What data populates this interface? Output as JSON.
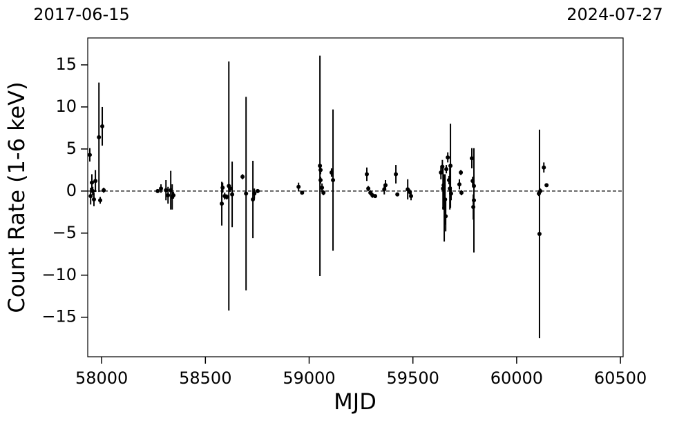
{
  "chart_data": {
    "type": "scatter",
    "top_left_label": "2017-06-15",
    "top_right_label": "2024-07-27",
    "xlabel": "MJD",
    "ylabel": "Count Rate (1-6 keV)",
    "xlim": [
      57933,
      60513
    ],
    "ylim": [
      -19.7,
      18.2
    ],
    "xticks": [
      58000,
      58500,
      59000,
      59500,
      60000,
      60500
    ],
    "yticks": [
      {
        "value": -15,
        "label": "−15"
      },
      {
        "value": -10,
        "label": "−10"
      },
      {
        "value": -5,
        "label": "−5"
      },
      0,
      5,
      10,
      15
    ],
    "hline": 0,
    "color": "#000000",
    "series": [
      {
        "name": "Count Rate",
        "x": [
          57943,
          57947,
          57953,
          57957,
          57963,
          57970,
          57987,
          57993,
          58003,
          58010,
          58270,
          58286,
          58310,
          58320,
          58333,
          58340,
          58346,
          58579,
          58583,
          58593,
          58603,
          58613,
          58619,
          58629,
          58679,
          58696,
          58729,
          58736,
          58752,
          58949,
          58966,
          59052,
          59055,
          59055,
          59062,
          59069,
          59108,
          59115,
          59278,
          59285,
          59295,
          59305,
          59318,
          59362,
          59368,
          59418,
          59425,
          59475,
          59485,
          59491,
          59635,
          59642,
          59645,
          59648,
          59651,
          59655,
          59658,
          59661,
          59668,
          59674,
          59678,
          59681,
          59684,
          59724,
          59731,
          59734,
          59784,
          59788,
          59791,
          59794,
          59794,
          60107,
          60110,
          60114,
          60131,
          60144
        ],
        "values": [
          4.3,
          -0.6,
          1.0,
          0,
          -1.0,
          1.2,
          6.4,
          -1.1,
          7.7,
          0.1,
          0,
          0.3,
          0.1,
          -0.5,
          0.1,
          -0.7,
          -0.5,
          -1.5,
          0.4,
          -0.6,
          -0.7,
          0.6,
          0.3,
          -0.4,
          1.7,
          -0.3,
          -1.0,
          -0.3,
          0,
          0.5,
          -0.2,
          3.0,
          2.5,
          1.3,
          0.4,
          -0.2,
          2.2,
          1.3,
          2.0,
          0.3,
          -0.2,
          -0.5,
          -0.6,
          0.2,
          0.7,
          2.0,
          -0.4,
          0.2,
          -0.1,
          -0.6,
          2.2,
          2.9,
          0.3,
          0.7,
          -2.0,
          -1.0,
          -3.0,
          2.6,
          4.0,
          1.3,
          0.3,
          3.0,
          -0.3,
          0.8,
          2.2,
          -0.2,
          3.9,
          1.2,
          -1.9,
          -1.1,
          0.6,
          -0.3,
          -5.1,
          0,
          2.8,
          0.7
        ],
        "errors": [
          0.8,
          1.0,
          1.0,
          0.5,
          0.8,
          1.3,
          6.5,
          0.4,
          2.3,
          0.3,
          0.2,
          0.5,
          1.2,
          1.0,
          2.3,
          1.5,
          0.4,
          2.6,
          0.6,
          0.4,
          0.3,
          14.8,
          0.4,
          3.9,
          0.3,
          11.5,
          4.6,
          0.6,
          0.2,
          0.5,
          0.2,
          13.1,
          0.5,
          0.4,
          0.5,
          0.3,
          0.5,
          8.4,
          0.8,
          0.3,
          0.3,
          0.3,
          0.2,
          0.6,
          0.6,
          1.1,
          0.2,
          1.2,
          0.3,
          0.5,
          0.8,
          0.8,
          2.5,
          1.2,
          4.0,
          3.0,
          1.8,
          0.5,
          0.6,
          0.5,
          2.5,
          5.0,
          0.8,
          0.6,
          0.3,
          0.3,
          1.2,
          0.5,
          1.5,
          6.2,
          0.3,
          0.3,
          12.4,
          0.3,
          0.6,
          0.2
        ]
      }
    ]
  }
}
